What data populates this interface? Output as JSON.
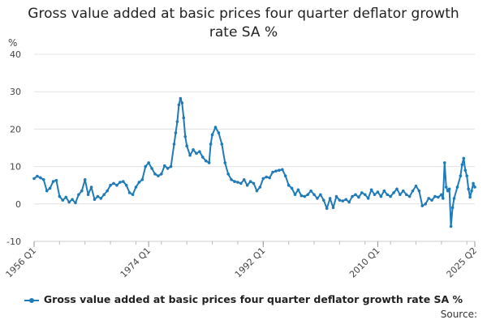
{
  "chart_data": {
    "type": "line",
    "title": "Gross value added at basic prices four quarter deflator growth rate SA %",
    "ylabel": "%",
    "ylim": [
      -10,
      40
    ],
    "yticks": [
      40,
      30,
      20,
      10,
      0,
      -10
    ],
    "xlim": [
      1956.0,
      2025.25
    ],
    "xticks": [
      {
        "label": "1956 Q1",
        "x": 1956.0
      },
      {
        "label": "1974 Q1",
        "x": 1974.0
      },
      {
        "label": "1992 Q1",
        "x": 1992.0
      },
      {
        "label": "2010 Q1",
        "x": 2010.0
      },
      {
        "label": "2025 Q2",
        "x": 2025.25
      }
    ],
    "grid": true,
    "legend_position": "bottom",
    "color": "#1f7bb8",
    "series": [
      {
        "name": "Gross value added at basic prices four quarter deflator growth rate SA %",
        "points": [
          [
            1956.0,
            6.8
          ],
          [
            1956.5,
            7.4
          ],
          [
            1957.0,
            7.0
          ],
          [
            1957.5,
            6.5
          ],
          [
            1958.0,
            3.5
          ],
          [
            1958.5,
            4.2
          ],
          [
            1959.0,
            6.0
          ],
          [
            1959.5,
            6.3
          ],
          [
            1960.0,
            2.0
          ],
          [
            1960.5,
            1.0
          ],
          [
            1961.0,
            1.8
          ],
          [
            1961.5,
            0.5
          ],
          [
            1962.0,
            1.2
          ],
          [
            1962.5,
            0.3
          ],
          [
            1963.0,
            2.5
          ],
          [
            1963.5,
            3.5
          ],
          [
            1964.0,
            6.5
          ],
          [
            1964.5,
            2.5
          ],
          [
            1965.0,
            4.5
          ],
          [
            1965.5,
            1.2
          ],
          [
            1966.0,
            2.0
          ],
          [
            1966.5,
            1.5
          ],
          [
            1967.0,
            2.5
          ],
          [
            1967.5,
            3.5
          ],
          [
            1968.0,
            5.0
          ],
          [
            1968.5,
            5.5
          ],
          [
            1969.0,
            5.0
          ],
          [
            1969.5,
            5.8
          ],
          [
            1970.0,
            6.0
          ],
          [
            1970.5,
            5.0
          ],
          [
            1971.0,
            3.0
          ],
          [
            1971.5,
            2.5
          ],
          [
            1972.0,
            4.5
          ],
          [
            1972.5,
            5.8
          ],
          [
            1973.0,
            6.5
          ],
          [
            1973.5,
            10.0
          ],
          [
            1974.0,
            11.0
          ],
          [
            1974.5,
            9.5
          ],
          [
            1975.0,
            8.0
          ],
          [
            1975.5,
            7.5
          ],
          [
            1976.0,
            8.0
          ],
          [
            1976.5,
            10.2
          ],
          [
            1977.0,
            9.5
          ],
          [
            1977.5,
            10.0
          ],
          [
            1978.0,
            16.0
          ],
          [
            1978.25,
            19.0
          ],
          [
            1978.5,
            22.0
          ],
          [
            1978.75,
            26.5
          ],
          [
            1979.0,
            28.2
          ],
          [
            1979.25,
            27.0
          ],
          [
            1979.5,
            23.0
          ],
          [
            1979.75,
            18.0
          ],
          [
            1980.0,
            15.5
          ],
          [
            1980.5,
            13.0
          ],
          [
            1981.0,
            14.5
          ],
          [
            1981.5,
            13.5
          ],
          [
            1982.0,
            14.0
          ],
          [
            1982.5,
            12.5
          ],
          [
            1983.0,
            11.5
          ],
          [
            1983.5,
            11.0
          ],
          [
            1983.75,
            16.0
          ],
          [
            1984.0,
            18.5
          ],
          [
            1984.5,
            20.5
          ],
          [
            1985.0,
            19.0
          ],
          [
            1985.5,
            16.0
          ],
          [
            1986.0,
            11.0
          ],
          [
            1986.5,
            8.0
          ],
          [
            1987.0,
            6.5
          ],
          [
            1987.5,
            6.0
          ],
          [
            1988.0,
            5.8
          ],
          [
            1988.5,
            5.5
          ],
          [
            1989.0,
            6.5
          ],
          [
            1989.5,
            5.0
          ],
          [
            1990.0,
            6.0
          ],
          [
            1990.5,
            5.5
          ],
          [
            1991.0,
            3.5
          ],
          [
            1991.5,
            4.5
          ],
          [
            1992.0,
            6.8
          ],
          [
            1992.5,
            7.2
          ],
          [
            1993.0,
            7.0
          ],
          [
            1993.5,
            8.5
          ],
          [
            1994.0,
            8.8
          ],
          [
            1994.5,
            9.0
          ],
          [
            1995.0,
            9.2
          ],
          [
            1995.5,
            7.5
          ],
          [
            1996.0,
            5.0
          ],
          [
            1996.5,
            4.2
          ],
          [
            1997.0,
            2.5
          ],
          [
            1997.5,
            3.8
          ],
          [
            1998.0,
            2.2
          ],
          [
            1998.5,
            2.0
          ],
          [
            1999.0,
            2.5
          ],
          [
            1999.5,
            3.5
          ],
          [
            2000.0,
            2.5
          ],
          [
            2000.5,
            1.5
          ],
          [
            2001.0,
            2.5
          ],
          [
            2001.5,
            1.0
          ],
          [
            2002.0,
            -1.2
          ],
          [
            2002.5,
            1.5
          ],
          [
            2003.0,
            -1.0
          ],
          [
            2003.5,
            2.0
          ],
          [
            2004.0,
            1.0
          ],
          [
            2004.5,
            0.8
          ],
          [
            2005.0,
            1.2
          ],
          [
            2005.5,
            0.5
          ],
          [
            2006.0,
            2.0
          ],
          [
            2006.5,
            2.5
          ],
          [
            2007.0,
            1.8
          ],
          [
            2007.5,
            3.0
          ],
          [
            2008.0,
            2.5
          ],
          [
            2008.5,
            1.5
          ],
          [
            2009.0,
            3.8
          ],
          [
            2009.5,
            2.5
          ],
          [
            2010.0,
            3.2
          ],
          [
            2010.5,
            2.0
          ],
          [
            2011.0,
            3.5
          ],
          [
            2011.5,
            2.5
          ],
          [
            2012.0,
            2.0
          ],
          [
            2012.5,
            3.0
          ],
          [
            2013.0,
            4.0
          ],
          [
            2013.5,
            2.5
          ],
          [
            2014.0,
            3.5
          ],
          [
            2014.5,
            2.5
          ],
          [
            2015.0,
            2.0
          ],
          [
            2015.5,
            3.5
          ],
          [
            2016.0,
            4.8
          ],
          [
            2016.5,
            3.5
          ],
          [
            2017.0,
            -0.5
          ],
          [
            2017.5,
            0.0
          ],
          [
            2018.0,
            1.5
          ],
          [
            2018.5,
            1.0
          ],
          [
            2019.0,
            2.0
          ],
          [
            2019.5,
            1.8
          ],
          [
            2020.0,
            2.5
          ],
          [
            2020.25,
            1.5
          ],
          [
            2020.5,
            11.0
          ],
          [
            2020.75,
            4.5
          ],
          [
            2021.0,
            3.5
          ],
          [
            2021.25,
            4.0
          ],
          [
            2021.5,
            -6.0
          ],
          [
            2021.75,
            -1.0
          ],
          [
            2022.0,
            1.5
          ],
          [
            2022.5,
            4.5
          ],
          [
            2023.0,
            7.5
          ],
          [
            2023.25,
            10.5
          ],
          [
            2023.5,
            12.2
          ],
          [
            2023.75,
            9.0
          ],
          [
            2024.0,
            7.5
          ],
          [
            2024.25,
            4.0
          ],
          [
            2024.5,
            1.8
          ],
          [
            2024.75,
            3.5
          ],
          [
            2025.0,
            5.5
          ],
          [
            2025.25,
            4.5
          ]
        ]
      }
    ]
  },
  "labels": {
    "title": "Gross value added at basic prices four quarter deflator growth rate SA %",
    "unit": "%",
    "legend": "Gross value added at basic prices four quarter deflator growth rate SA %",
    "source": "Source:"
  }
}
